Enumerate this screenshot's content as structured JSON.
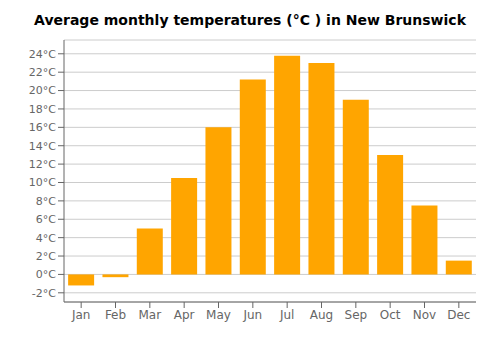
{
  "chart_data": {
    "type": "bar",
    "title": "Average monthly temperatures (°C ) in New Brunswick",
    "categories": [
      "Jan",
      "Feb",
      "Mar",
      "Apr",
      "May",
      "Jun",
      "Jul",
      "Aug",
      "Sep",
      "Oct",
      "Nov",
      "Dec"
    ],
    "values": [
      -1.2,
      -0.3,
      5.0,
      10.5,
      16.0,
      21.2,
      23.8,
      23.0,
      19.0,
      13.0,
      7.5,
      1.5
    ],
    "color": "#FFA500",
    "ylim": [
      -3,
      25.5
    ],
    "yticks": [
      {
        "value": -2,
        "label": "-2°C"
      },
      {
        "value": 0,
        "label": "0°C"
      },
      {
        "value": 2,
        "label": "2°C"
      },
      {
        "value": 4,
        "label": "4°C"
      },
      {
        "value": 6,
        "label": "6°C"
      },
      {
        "value": 8,
        "label": "8°C"
      },
      {
        "value": 10,
        "label": "10°C"
      },
      {
        "value": 12,
        "label": "12°C"
      },
      {
        "value": 14,
        "label": "14°C"
      },
      {
        "value": 16,
        "label": "16°C"
      },
      {
        "value": 18,
        "label": "18°C"
      },
      {
        "value": 20,
        "label": "20°C"
      },
      {
        "value": 22,
        "label": "22°C"
      },
      {
        "value": 24,
        "label": "24°C"
      }
    ],
    "grid": true
  }
}
